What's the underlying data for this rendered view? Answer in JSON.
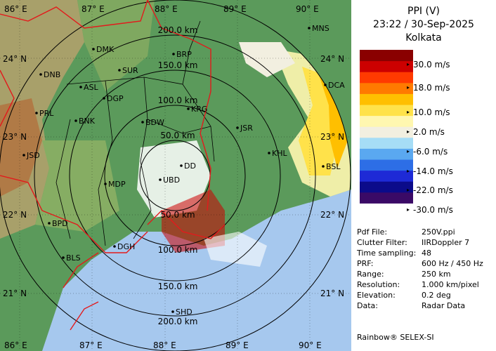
{
  "header": {
    "product": "PPI (V)",
    "datetime": "23:22 / 30-Sep-2025",
    "station": "Kolkata"
  },
  "legend": {
    "colors": [
      "#ffffff",
      "#3a0a66",
      "#0b0b8a",
      "#1e2ad6",
      "#2d6ee6",
      "#5aa8f0",
      "#a6ddf6",
      "#f2efe0",
      "#fff7b0",
      "#ffe24a",
      "#ffbf00",
      "#ff7a00",
      "#ff3a00",
      "#cc0000",
      "#8a0000"
    ],
    "labels": [
      "30.0 m/s",
      "18.0 m/s",
      "10.0 m/s",
      "2.0 m/s",
      "-6.0 m/s",
      "-14.0 m/s",
      "-22.0 m/s",
      "-30.0 m/s"
    ]
  },
  "metadata": [
    {
      "key": "Pdf File:",
      "value": "250V.ppi"
    },
    {
      "key": "Clutter Filter:",
      "value": "IIRDoppler 7"
    },
    {
      "key": "Time sampling:",
      "value": "48"
    },
    {
      "key": "PRF:",
      "value": "600 Hz / 450 Hz"
    },
    {
      "key": "Range:",
      "value": "250 km"
    },
    {
      "key": "Resolution:",
      "value": "1.000 km/pixel"
    },
    {
      "key": "Elevation:",
      "value": "0.2 deg"
    },
    {
      "key": "Data:",
      "value": "Radar Data"
    }
  ],
  "footer": "Rainbow® SELEX-SI",
  "map": {
    "lon_labels_top": [
      "86° E",
      "87° E",
      "88° E",
      "89° E",
      "90° E"
    ],
    "lon_labels_bottom": [
      "86° E",
      "87° E",
      "88° E",
      "89° E",
      "90° E"
    ],
    "lat_labels_left": [
      "24° N",
      "23° N",
      "22° N",
      "21° N"
    ],
    "lat_labels_right": [
      "24° N",
      "23° N",
      "22° N",
      "21° N"
    ],
    "range_labels_north": [
      "200.0 km",
      "150.0 km",
      "100.0 km",
      "50.0 km"
    ],
    "range_labels_south": [
      "50.0 km",
      "100.0 km",
      "150.0 km",
      "200.0 km"
    ],
    "cities": [
      "MNS",
      "DMK",
      "BRP",
      "DNB",
      "SUR",
      "ASL",
      "DGP",
      "KRG",
      "PRL",
      "BNK",
      "BDW",
      "JSR",
      "KHL",
      "DCA",
      "JSD",
      "DD",
      "UBD",
      "BSL",
      "MDP",
      "BPD",
      "DGH",
      "BLS",
      "SHD"
    ]
  }
}
